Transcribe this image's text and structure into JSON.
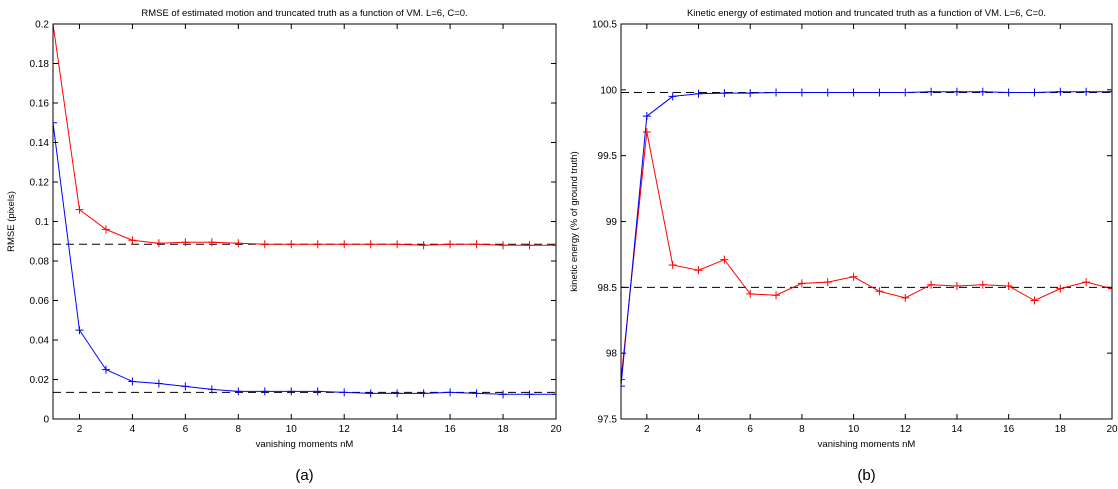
{
  "chart_data": [
    {
      "type": "line",
      "title": "RMSE of estimated motion and truncated truth as a function of VM. L=6, C=0.",
      "xlabel": "vanishing moments nM",
      "ylabel": "RMSE (pixels)",
      "caption": "(a)",
      "xlim": [
        1,
        20
      ],
      "ylim": [
        0,
        0.2
      ],
      "xticks": [
        2,
        4,
        6,
        8,
        10,
        12,
        14,
        16,
        18,
        20
      ],
      "yticks": [
        0,
        0.02,
        0.04,
        0.06,
        0.08,
        0.1,
        0.12,
        0.14,
        0.16,
        0.18,
        0.2
      ],
      "ytick_labels": [
        "0",
        "0.02",
        "0.04",
        "0.06",
        "0.08",
        "0.1",
        "0.12",
        "0.14",
        "0.16",
        "0.18",
        "0.2"
      ],
      "grid": false,
      "x": [
        1,
        2,
        3,
        4,
        5,
        6,
        7,
        8,
        9,
        10,
        11,
        12,
        13,
        14,
        15,
        16,
        17,
        18,
        19,
        20
      ],
      "series": [
        {
          "color": "#ff0000",
          "marker": "+",
          "values": [
            0.2,
            0.106,
            0.096,
            0.0905,
            0.089,
            0.0895,
            0.0895,
            0.089,
            0.0885,
            0.0885,
            0.0885,
            0.0885,
            0.0885,
            0.0885,
            0.088,
            0.0885,
            0.0885,
            0.088,
            0.088,
            0.088
          ]
        },
        {
          "color": "#0000ff",
          "marker": "+",
          "values": [
            0.15,
            0.045,
            0.025,
            0.019,
            0.018,
            0.0165,
            0.015,
            0.014,
            0.014,
            0.014,
            0.014,
            0.0135,
            0.013,
            0.013,
            0.013,
            0.0135,
            0.013,
            0.0125,
            0.0125,
            0.0125
          ]
        }
      ],
      "reference_lines": [
        {
          "y": 0.0885,
          "style": "dashed",
          "color": "#000000"
        },
        {
          "y": 0.0135,
          "style": "dashed",
          "color": "#000000"
        }
      ]
    },
    {
      "type": "line",
      "title": "Kinetic energy of estimated motion and truncated truth as a function of VM. L=6, C=0.",
      "xlabel": "vanishing moments nM",
      "ylabel": "kinetic energy (% of ground truth)",
      "caption": "(b)",
      "xlim": [
        1,
        20
      ],
      "ylim": [
        97.5,
        100.5
      ],
      "xticks": [
        2,
        4,
        6,
        8,
        10,
        12,
        14,
        16,
        18,
        20
      ],
      "yticks": [
        97.5,
        98,
        98.5,
        99,
        99.5,
        100,
        100.5
      ],
      "ytick_labels": [
        "97.5",
        "98",
        "98.5",
        "99",
        "99.5",
        "100",
        "100.5"
      ],
      "grid": false,
      "x": [
        1,
        2,
        3,
        4,
        5,
        6,
        7,
        8,
        9,
        10,
        11,
        12,
        13,
        14,
        15,
        16,
        17,
        18,
        19,
        20
      ],
      "series": [
        {
          "color": "#ff0000",
          "marker": "+",
          "values": [
            97.8,
            99.68,
            98.67,
            98.63,
            98.71,
            98.45,
            98.44,
            98.53,
            98.54,
            98.58,
            98.47,
            98.42,
            98.52,
            98.51,
            98.52,
            98.51,
            98.4,
            98.49,
            98.54,
            98.49
          ]
        },
        {
          "color": "#0000ff",
          "marker": "+",
          "values": [
            97.75,
            99.8,
            99.95,
            99.97,
            99.975,
            99.975,
            99.98,
            99.98,
            99.98,
            99.98,
            99.98,
            99.98,
            99.985,
            99.985,
            99.985,
            99.98,
            99.98,
            99.985,
            99.985,
            99.985
          ]
        }
      ],
      "reference_lines": [
        {
          "y": 99.98,
          "style": "dashed",
          "color": "#000000"
        },
        {
          "y": 98.5,
          "style": "dashed",
          "color": "#000000"
        }
      ]
    }
  ]
}
